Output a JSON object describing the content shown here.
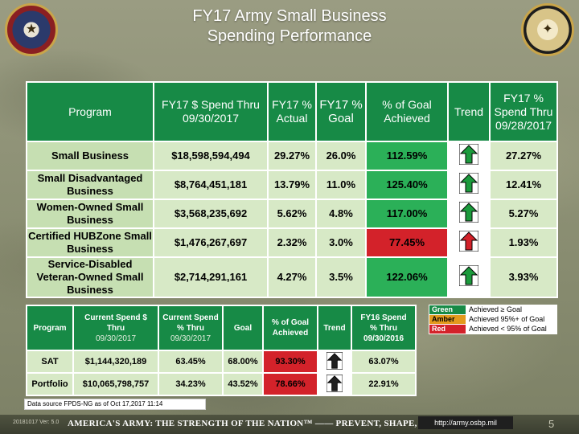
{
  "title_line1": "FY17 Army Small Business",
  "title_line2": "Spending Performance",
  "main_table": {
    "headers": {
      "program": "Program",
      "spend": "FY17 $ Spend Thru 09/30/2017",
      "actual": "FY17 % Actual",
      "goal": "FY17 % Goal",
      "pct_goal": "% of Goal Achieved",
      "trend": "Trend",
      "pct_spend": "FY17 % Spend Thru 09/28/2017"
    },
    "rows": [
      {
        "program": "Small Business",
        "spend": "$18,598,594,494",
        "actual": "29.27%",
        "goal": "26.0%",
        "pct_goal": "112.59%",
        "status": "green",
        "trend": "up-arrow-icon",
        "pct_spend": "27.27%"
      },
      {
        "program": "Small Disadvantaged Business",
        "spend": "$8,764,451,181",
        "actual": "13.79%",
        "goal": "11.0%",
        "pct_goal": "125.40%",
        "status": "green",
        "trend": "up-arrow-icon",
        "pct_spend": "12.41%"
      },
      {
        "program": "Women-Owned Small Business",
        "spend": "$3,568,235,692",
        "actual": "5.62%",
        "goal": "4.8%",
        "pct_goal": "117.00%",
        "status": "green",
        "trend": "up-arrow-icon",
        "pct_spend": "5.27%"
      },
      {
        "program": "Certified HUBZone Small Business",
        "spend": "$1,476,267,697",
        "actual": "2.32%",
        "goal": "3.0%",
        "pct_goal": "77.45%",
        "status": "red",
        "trend": "up-arrow-icon",
        "pct_spend": "1.93%"
      },
      {
        "program": "Service-Disabled Veteran-Owned Small Business",
        "spend": "$2,714,291,161",
        "actual": "4.27%",
        "goal": "3.5%",
        "pct_goal": "122.06%",
        "status": "green",
        "trend": "up-arrow-icon",
        "pct_spend": "3.93%"
      }
    ]
  },
  "sub_table": {
    "headers": {
      "program": "Program",
      "spend_a": "Current Spend $",
      "spend_b": "Thru",
      "spend_c": "09/30/2017",
      "pct_a": "Current Spend",
      "pct_b": "% Thru",
      "pct_c": "09/30/2017",
      "goal": "Goal",
      "achieved": "% of Goal Achieved",
      "trend": "Trend",
      "fy16_a": "FY16 Spend",
      "fy16_b": "% Thru",
      "fy16_c": "09/30/2016"
    },
    "rows": [
      {
        "program": "SAT",
        "spend": "$1,144,320,189",
        "pct": "63.45%",
        "goal": "68.00%",
        "achieved": "93.30%",
        "trend": "up-arrow-icon",
        "fy16": "63.07%"
      },
      {
        "program": "Portfolio",
        "spend": "$10,065,798,757",
        "pct": "34.23%",
        "goal": "43.52%",
        "achieved": "78.66%",
        "trend": "up-arrow-icon",
        "fy16": "22.91%"
      }
    ]
  },
  "legend": [
    {
      "name": "Green",
      "desc": "Achieved ≥ Goal",
      "color": "#178a46"
    },
    {
      "name": "Amber",
      "desc": "Achieved 95%+ of Goal",
      "color": "#e39a1d"
    },
    {
      "name": "Red",
      "desc": "Achieved < 95% of Goal",
      "color": "#d3222a"
    }
  ],
  "datasource": "Data source FPDS-NG as of Oct 17,2017 11:14",
  "footer": {
    "version": "20181017 Ver: 5.0",
    "banner": "AMERICA'S ARMY: THE STRENGTH OF THE NATION™ —— PREVENT, SHAPE, WIN",
    "url": "http://army.osbp.mil",
    "page": "5"
  },
  "colors": {
    "header_green": "#178a46",
    "cell_green": "#2bb058",
    "cell_red": "#d3222a",
    "arrow_green": "#1b9a3c",
    "arrow_red": "#d3222a"
  }
}
